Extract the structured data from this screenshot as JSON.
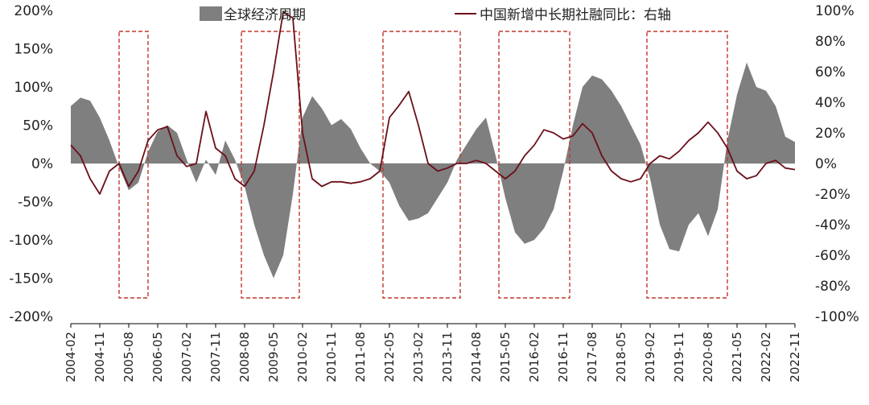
{
  "chart_data": {
    "type": "area+line",
    "series": [
      {
        "name": "全球经济周期",
        "axis": "left",
        "style": "area",
        "color": "#7f7f7f",
        "points": [
          [
            "2004-02",
            75
          ],
          [
            "2004-05",
            86
          ],
          [
            "2004-08",
            82
          ],
          [
            "2004-11",
            60
          ],
          [
            "2005-02",
            30
          ],
          [
            "2005-05",
            -5
          ],
          [
            "2005-08",
            -35
          ],
          [
            "2005-11",
            -25
          ],
          [
            "2006-02",
            15
          ],
          [
            "2006-05",
            42
          ],
          [
            "2006-08",
            50
          ],
          [
            "2006-11",
            40
          ],
          [
            "2007-02",
            5
          ],
          [
            "2007-05",
            -25
          ],
          [
            "2007-08",
            5
          ],
          [
            "2007-11",
            -15
          ],
          [
            "2008-02",
            30
          ],
          [
            "2008-05",
            5
          ],
          [
            "2008-08",
            -30
          ],
          [
            "2008-11",
            -80
          ],
          [
            "2009-02",
            -120
          ],
          [
            "2009-05",
            -150
          ],
          [
            "2009-08",
            -120
          ],
          [
            "2009-11",
            -40
          ],
          [
            "2010-02",
            60
          ],
          [
            "2010-05",
            88
          ],
          [
            "2010-08",
            72
          ],
          [
            "2010-11",
            50
          ],
          [
            "2011-02",
            58
          ],
          [
            "2011-05",
            45
          ],
          [
            "2011-08",
            20
          ],
          [
            "2011-11",
            0
          ],
          [
            "2012-02",
            -10
          ],
          [
            "2012-05",
            -25
          ],
          [
            "2012-08",
            -55
          ],
          [
            "2012-11",
            -75
          ],
          [
            "2013-02",
            -72
          ],
          [
            "2013-05",
            -65
          ],
          [
            "2013-08",
            -45
          ],
          [
            "2013-11",
            -25
          ],
          [
            "2014-02",
            5
          ],
          [
            "2014-05",
            25
          ],
          [
            "2014-08",
            45
          ],
          [
            "2014-11",
            60
          ],
          [
            "2015-02",
            10
          ],
          [
            "2015-05",
            -45
          ],
          [
            "2015-08",
            -90
          ],
          [
            "2015-11",
            -105
          ],
          [
            "2016-02",
            -100
          ],
          [
            "2016-05",
            -85
          ],
          [
            "2016-08",
            -60
          ],
          [
            "2016-11",
            -10
          ],
          [
            "2017-02",
            50
          ],
          [
            "2017-05",
            100
          ],
          [
            "2017-08",
            115
          ],
          [
            "2017-11",
            110
          ],
          [
            "2018-02",
            95
          ],
          [
            "2018-05",
            75
          ],
          [
            "2018-08",
            50
          ],
          [
            "2018-11",
            25
          ],
          [
            "2019-02",
            -20
          ],
          [
            "2019-05",
            -80
          ],
          [
            "2019-08",
            -112
          ],
          [
            "2019-11",
            -115
          ],
          [
            "2020-02",
            -80
          ],
          [
            "2020-05",
            -65
          ],
          [
            "2020-08",
            -95
          ],
          [
            "2020-11",
            -60
          ],
          [
            "2021-02",
            30
          ],
          [
            "2021-05",
            90
          ],
          [
            "2021-08",
            132
          ],
          [
            "2021-11",
            100
          ],
          [
            "2022-02",
            95
          ],
          [
            "2022-05",
            75
          ],
          [
            "2022-08",
            35
          ],
          [
            "2022-11",
            28
          ]
        ]
      },
      {
        "name": "中国新增中长期社融同比：右轴",
        "axis": "right",
        "style": "line",
        "color": "#6b0f1a",
        "points": [
          [
            "2004-02",
            12
          ],
          [
            "2004-05",
            5
          ],
          [
            "2004-08",
            -10
          ],
          [
            "2004-11",
            -20
          ],
          [
            "2005-02",
            -5
          ],
          [
            "2005-05",
            0
          ],
          [
            "2005-08",
            -15
          ],
          [
            "2005-11",
            -5
          ],
          [
            "2006-02",
            15
          ],
          [
            "2006-05",
            22
          ],
          [
            "2006-08",
            24
          ],
          [
            "2006-11",
            5
          ],
          [
            "2007-02",
            -2
          ],
          [
            "2007-05",
            0
          ],
          [
            "2007-08",
            34
          ],
          [
            "2007-11",
            10
          ],
          [
            "2008-02",
            5
          ],
          [
            "2008-05",
            -10
          ],
          [
            "2008-08",
            -15
          ],
          [
            "2008-11",
            -5
          ],
          [
            "2009-02",
            25
          ],
          [
            "2009-05",
            60
          ],
          [
            "2009-08",
            99
          ],
          [
            "2009-11",
            95
          ],
          [
            "2010-02",
            20
          ],
          [
            "2010-05",
            -10
          ],
          [
            "2010-08",
            -15
          ],
          [
            "2010-11",
            -12
          ],
          [
            "2011-02",
            -12
          ],
          [
            "2011-05",
            -13
          ],
          [
            "2011-08",
            -12
          ],
          [
            "2011-11",
            -10
          ],
          [
            "2012-02",
            -5
          ],
          [
            "2012-05",
            30
          ],
          [
            "2012-08",
            38
          ],
          [
            "2012-11",
            47
          ],
          [
            "2013-02",
            25
          ],
          [
            "2013-05",
            0
          ],
          [
            "2013-08",
            -5
          ],
          [
            "2013-11",
            -3
          ],
          [
            "2014-02",
            0
          ],
          [
            "2014-05",
            0
          ],
          [
            "2014-08",
            2
          ],
          [
            "2014-11",
            0
          ],
          [
            "2015-02",
            -5
          ],
          [
            "2015-05",
            -10
          ],
          [
            "2015-08",
            -5
          ],
          [
            "2015-11",
            5
          ],
          [
            "2016-02",
            12
          ],
          [
            "2016-05",
            22
          ],
          [
            "2016-08",
            20
          ],
          [
            "2016-11",
            16
          ],
          [
            "2017-02",
            18
          ],
          [
            "2017-05",
            26
          ],
          [
            "2017-08",
            20
          ],
          [
            "2017-11",
            5
          ],
          [
            "2018-02",
            -5
          ],
          [
            "2018-05",
            -10
          ],
          [
            "2018-08",
            -12
          ],
          [
            "2018-11",
            -10
          ],
          [
            "2019-02",
            0
          ],
          [
            "2019-05",
            5
          ],
          [
            "2019-08",
            3
          ],
          [
            "2019-11",
            8
          ],
          [
            "2020-02",
            15
          ],
          [
            "2020-05",
            20
          ],
          [
            "2020-08",
            27
          ],
          [
            "2020-11",
            20
          ],
          [
            "2021-02",
            10
          ],
          [
            "2021-05",
            -5
          ],
          [
            "2021-08",
            -10
          ],
          [
            "2021-11",
            -8
          ],
          [
            "2022-02",
            0
          ],
          [
            "2022-05",
            2
          ],
          [
            "2022-08",
            -3
          ],
          [
            "2022-11",
            -4
          ]
        ]
      }
    ],
    "left_axis": {
      "min": -200,
      "max": 200,
      "ticks": [
        "200%",
        "150%",
        "100%",
        "50%",
        "0%",
        "-50%",
        "-100%",
        "-150%",
        "-200%"
      ]
    },
    "right_axis": {
      "min": -100,
      "max": 100,
      "ticks": [
        "100%",
        "80%",
        "60%",
        "40%",
        "20%",
        "0%",
        "-20%",
        "-40%",
        "-60%",
        "-80%",
        "-100%"
      ]
    },
    "x_ticks": [
      "2004-02",
      "2004-11",
      "2005-08",
      "2006-05",
      "2007-02",
      "2007-11",
      "2008-08",
      "2009-05",
      "2010-02",
      "2010-11",
      "2011-08",
      "2012-05",
      "2013-02",
      "2013-11",
      "2014-08",
      "2015-05",
      "2016-02",
      "2016-11",
      "2017-08",
      "2018-05",
      "2019-02",
      "2019-11",
      "2020-08",
      "2021-05",
      "2022-02",
      "2022-11"
    ],
    "highlight_periods": [
      {
        "start": "2005-05",
        "end": "2006-02"
      },
      {
        "start": "2008-07",
        "end": "2010-01"
      },
      {
        "start": "2012-03",
        "end": "2014-03"
      },
      {
        "start": "2015-03",
        "end": "2017-01"
      },
      {
        "start": "2019-01",
        "end": "2021-02"
      }
    ],
    "highlight_color": "#c0392b",
    "legend_position": "top"
  }
}
